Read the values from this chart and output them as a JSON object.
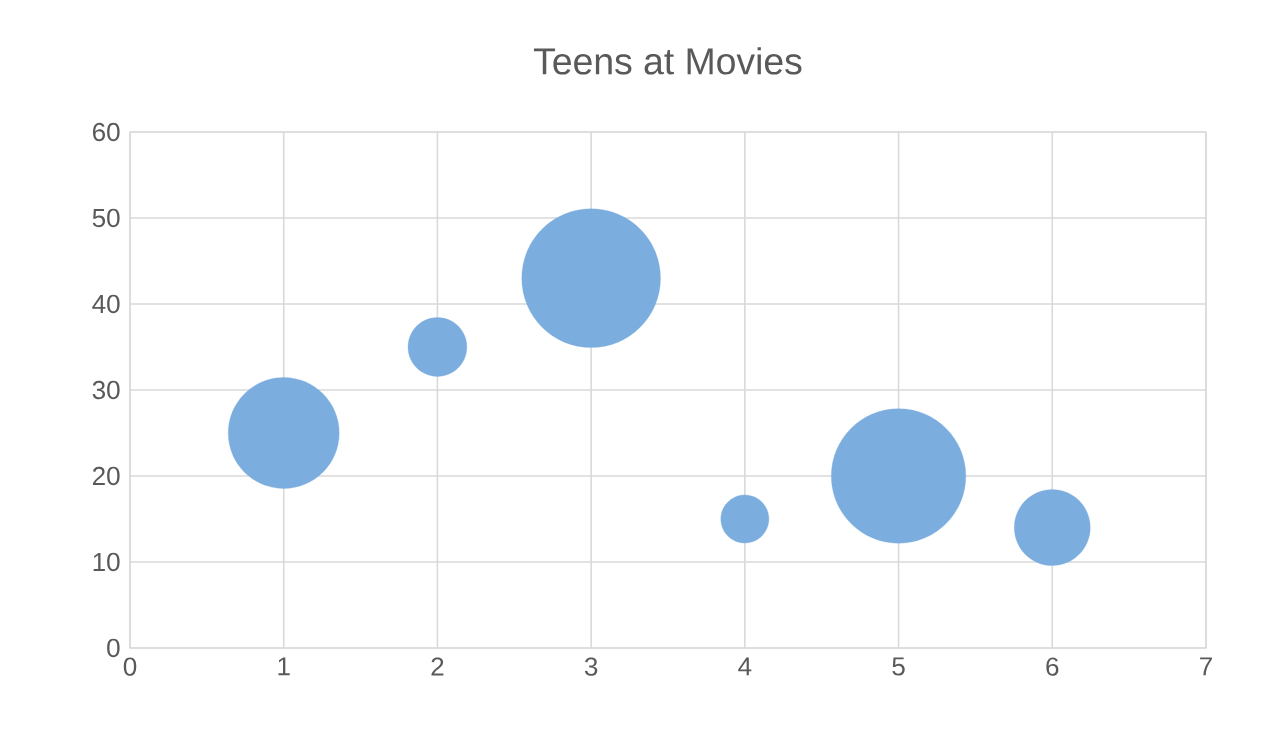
{
  "chart_data": {
    "type": "bubble",
    "title": "Teens at Movies",
    "x": [
      1,
      2,
      3,
      4,
      5,
      6
    ],
    "values": [
      25,
      35,
      43,
      15,
      20,
      14
    ],
    "sizes": [
      0.64,
      0.18,
      1,
      0.12,
      0.94,
      0.3
    ],
    "color": "#7badde",
    "xlim": [
      0,
      7
    ],
    "ylim": [
      0,
      60
    ],
    "xticks": [
      0,
      1,
      2,
      3,
      4,
      5,
      6,
      7
    ],
    "yticks": [
      0,
      10,
      20,
      30,
      40,
      50,
      60
    ],
    "grid": true,
    "marker": "circle"
  }
}
